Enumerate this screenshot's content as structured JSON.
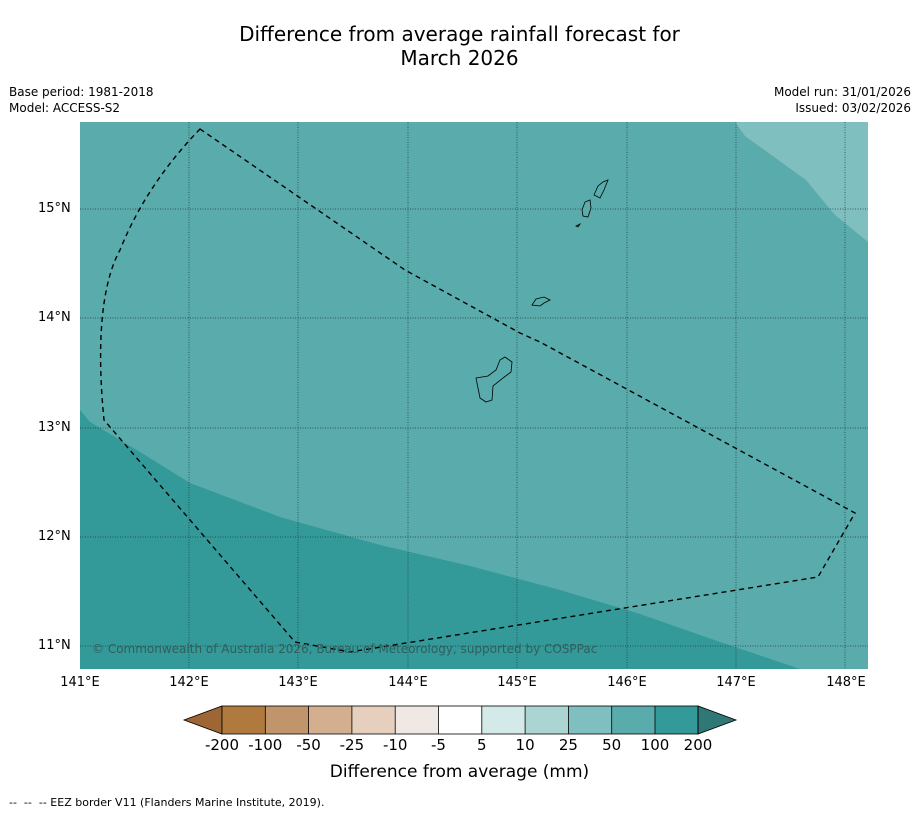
{
  "title_line1": "Difference from average rainfall forecast for",
  "title_line2": "March 2026",
  "meta": {
    "base_period": "Base period: 1981-2018",
    "model": "Model: ACCESS-S2",
    "model_run": "Model run: 31/01/2026",
    "issued": "Issued: 03/02/2026"
  },
  "map": {
    "lat_labels": [
      "15°N",
      "14°N",
      "13°N",
      "12°N",
      "11°N"
    ],
    "lon_labels": [
      "141°E",
      "142°E",
      "143°E",
      "144°E",
      "145°E",
      "146°E",
      "147°E",
      "148°E"
    ],
    "copyright": "© Commonwealth of Australia 2026, Bureau of Meteorology, supported by COSPPac",
    "colors": {
      "band_25_50": "#80bfbf",
      "band_50_100": "#5aabab",
      "band_100_200": "#339999",
      "eez_border": "#000000"
    }
  },
  "colorbar": {
    "ticks": [
      "-200",
      "-100",
      "-50",
      "-25",
      "-10",
      "-5",
      "5",
      "10",
      "25",
      "50",
      "100",
      "200"
    ],
    "colors": [
      "#9e6634",
      "#b07a3f",
      "#c0956b",
      "#d4af8f",
      "#e6d0bd",
      "#efe8e4",
      "#ffffff",
      "#d4eae8",
      "#abd5d3",
      "#80bfbf",
      "#5aabab",
      "#339999",
      "#2f7875"
    ],
    "label": "Difference from average (mm)"
  },
  "footer": "--  --  -- EEZ border V11 (Flanders Marine Institute, 2019)."
}
